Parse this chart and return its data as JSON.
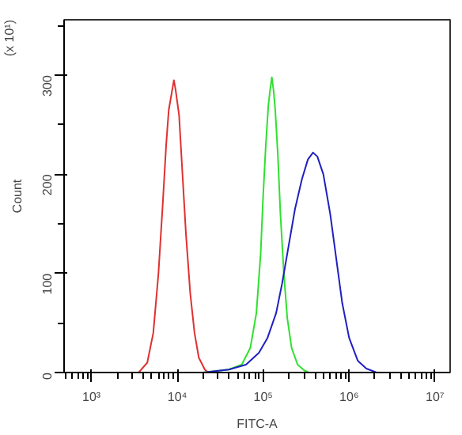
{
  "chart_data": {
    "type": "line",
    "xlabel": "FITC-A",
    "ylabel": "Count",
    "annotations": [
      "(x 10¹)"
    ],
    "log": "x",
    "grid": false,
    "marker": "none",
    "line_style": "solid",
    "xlim": [
      480,
      15000000
    ],
    "ylim": [
      0,
      356
    ],
    "xticks": [
      {
        "value": 1000,
        "label": "10³"
      },
      {
        "value": 10000,
        "label": "10⁴"
      },
      {
        "value": 100000,
        "label": "10⁵"
      },
      {
        "value": 1000000,
        "label": "10⁶"
      },
      {
        "value": 10000000,
        "label": "10⁷"
      }
    ],
    "yticks": [
      0,
      100,
      200,
      300
    ],
    "series": [
      {
        "color": "#e03030",
        "x": [
          3548,
          4467,
          5248,
          6026,
          6761,
          7413,
          7943,
          8511,
          9120,
          9550,
          10470,
          11480,
          12590,
          14130,
          15850,
          17780,
          20890,
          22910
        ],
        "values": [
          0,
          10,
          40,
          100,
          170,
          230,
          265,
          280,
          295,
          285,
          260,
          200,
          140,
          80,
          40,
          15,
          3,
          0
        ]
      },
      {
        "color": "#30e030",
        "x": [
          19950,
          39810,
          56230,
          70790,
          83180,
          93330,
          100000,
          107200,
          114800,
          120200,
          125900,
          131800,
          138000,
          147900,
          158500,
          173800,
          190500,
          213800,
          251200,
          302000,
          338800
        ],
        "values": [
          0,
          3,
          8,
          25,
          60,
          120,
          180,
          230,
          270,
          285,
          298,
          285,
          265,
          220,
          160,
          100,
          55,
          25,
          8,
          2,
          0
        ]
      },
      {
        "color": "#2020c0",
        "x": [
          19950,
          39810,
          63100,
          89130,
          112200,
          141300,
          166000,
          199500,
          234400,
          281800,
          331100,
          380200,
          426600,
          501200,
          602600,
          707900,
          831800,
          1000000,
          1259000,
          1585000,
          2089000
        ],
        "values": [
          0,
          3,
          8,
          20,
          35,
          60,
          90,
          130,
          165,
          195,
          215,
          222,
          218,
          200,
          160,
          115,
          70,
          35,
          12,
          4,
          0
        ]
      }
    ]
  }
}
